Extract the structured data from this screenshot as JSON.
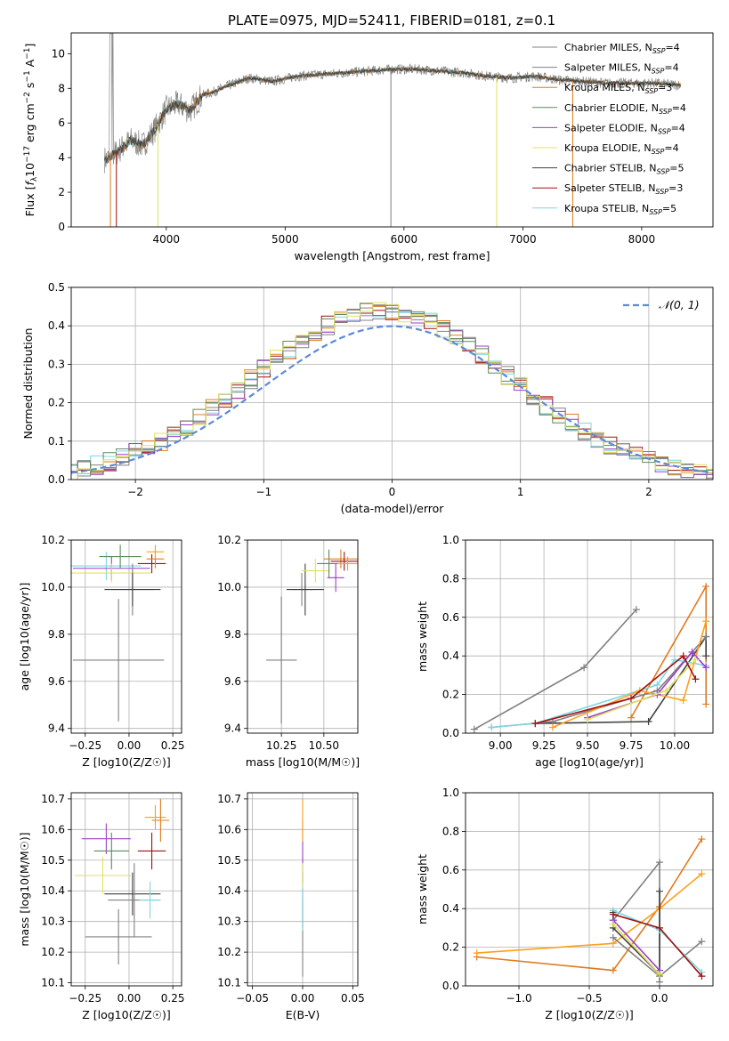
{
  "figure": {
    "title": "PLATE=0975, MJD=52411, FIBERID=0181, z=0.1"
  },
  "models": [
    {
      "name": "Chabrier MILES",
      "nssp": "4",
      "color": "#808080"
    },
    {
      "name": "Salpeter MILES",
      "nssp": "4",
      "color": "#808080"
    },
    {
      "name": "Kroupa MILES",
      "nssp": "3",
      "color": "#e07b1f"
    },
    {
      "name": "Chabrier ELODIE",
      "nssp": "4",
      "color": "#5a8a5a"
    },
    {
      "name": "Salpeter ELODIE",
      "nssp": "4",
      "color": "#9b3fc9"
    },
    {
      "name": "Kroupa ELODIE",
      "nssp": "4",
      "color": "#e0e060"
    },
    {
      "name": "Chabrier STELIB",
      "nssp": "5",
      "color": "#404040"
    },
    {
      "name": "Salpeter STELIB",
      "nssp": "3",
      "color": "#a01010"
    },
    {
      "name": "Kroupa STELIB",
      "nssp": "5",
      "color": "#7fd6e0"
    }
  ],
  "chart_data": [
    {
      "id": "spectrum",
      "type": "line",
      "xlabel": "wavelength [Angstrom, rest frame]",
      "ylabel_html": "Flux [f_λ10^-17 erg cm^-2 s^-1 A^-1]",
      "ylabel_parts": [
        "Flux [",
        "f",
        "λ",
        "10",
        "−17",
        " erg cm",
        "−2",
        " s",
        "−1",
        " A",
        "−1",
        "]"
      ],
      "xlim": [
        3200,
        8600
      ],
      "ylim": [
        0,
        11.2
      ],
      "xticks": [
        4000,
        5000,
        6000,
        7000,
        8000
      ],
      "yticks": [
        0,
        2,
        4,
        6,
        8,
        10
      ],
      "envelope": {
        "x": [
          3500,
          3600,
          3700,
          3800,
          3900,
          4000,
          4100,
          4200,
          4300,
          4400,
          4500,
          4700,
          4900,
          5100,
          5300,
          5500,
          5700,
          5900,
          6100,
          6300,
          6500,
          6700,
          6900,
          7100,
          7300,
          7500,
          7700,
          7900,
          8100,
          8300
        ],
        "y": [
          3.9,
          4.4,
          5.0,
          4.7,
          5.6,
          6.8,
          7.1,
          6.7,
          7.6,
          7.8,
          8.1,
          8.6,
          8.4,
          8.7,
          8.8,
          8.9,
          9.0,
          9.1,
          9.1,
          9.0,
          8.9,
          8.7,
          8.6,
          8.7,
          8.5,
          8.4,
          8.3,
          8.3,
          8.3,
          8.2
        ]
      }
    },
    {
      "id": "residuals",
      "type": "histogram",
      "xlabel": "(data-model)/error",
      "ylabel": "Normed distribution",
      "xlim": [
        -2.5,
        2.5
      ],
      "ylim": [
        0,
        0.5
      ],
      "xticks": [
        -2,
        -1,
        0,
        1,
        2
      ],
      "yticks": [
        0.0,
        0.1,
        0.2,
        0.3,
        0.4,
        0.5
      ],
      "legend": "𝒩(0, 1)",
      "legend_loc": "upper right"
    },
    {
      "id": "age-vs-Z",
      "type": "errorbar",
      "xlabel": "Z [log10(Z/Z☉)]",
      "ylabel": "age [log10(age/yr)]",
      "xlim": [
        -0.33,
        0.3
      ],
      "ylim": [
        9.38,
        10.2
      ],
      "xticks": [
        -0.25,
        0.0,
        0.25
      ],
      "yticks": [
        9.4,
        9.6,
        9.8,
        10.0,
        10.2
      ],
      "points": [
        {
          "x": -0.13,
          "y": 10.09,
          "xerr": 0.2,
          "yerr": 0.06,
          "c": 8
        },
        {
          "x": -0.1,
          "y": 10.08,
          "xerr": 0.22,
          "yerr": 0.05,
          "c": 4
        },
        {
          "x": -0.1,
          "y": 10.06,
          "xerr": 0.23,
          "yerr": 0.04,
          "c": 5
        },
        {
          "x": -0.05,
          "y": 10.13,
          "xerr": 0.12,
          "yerr": 0.05,
          "c": 3
        },
        {
          "x": 0.02,
          "y": 9.99,
          "xerr": 0.12,
          "yerr": 0.11,
          "c": 0
        },
        {
          "x": 0.02,
          "y": 9.99,
          "xerr": 0.16,
          "yerr": 0.07,
          "c": 6
        },
        {
          "x": 0.13,
          "y": 10.1,
          "xerr": 0.08,
          "yerr": 0.04,
          "c": 7
        },
        {
          "x": 0.15,
          "y": 10.12,
          "xerr": 0.05,
          "yerr": 0.04,
          "c": 2
        },
        {
          "x": 0.15,
          "y": 10.15,
          "xerr": 0.05,
          "yerr": 0.03,
          "c": 9
        },
        {
          "x": -0.06,
          "y": 9.69,
          "xerr": 0.26,
          "yerr": 0.26,
          "c": 1
        }
      ]
    },
    {
      "id": "age-vs-mass",
      "type": "errorbar",
      "xlabel": "mass [log10(M/M☉)]",
      "ylabel": "",
      "xlim": [
        10.05,
        10.7
      ],
      "ylim": [
        9.38,
        10.2
      ],
      "xticks": [
        10.25,
        10.5
      ],
      "xtick_labels": [
        "10.25",
        "10.50"
      ],
      "yticks": [
        9.4,
        9.6,
        9.8,
        10.0,
        10.2
      ],
      "points": [
        {
          "x": 10.37,
          "y": 9.99,
          "xerr": 0.07,
          "yerr": 0.07,
          "c": 0
        },
        {
          "x": 10.39,
          "y": 9.99,
          "xerr": 0.11,
          "yerr": 0.11,
          "c": 6
        },
        {
          "x": 10.45,
          "y": 10.07,
          "xerr": 0.08,
          "yerr": 0.05,
          "c": 5
        },
        {
          "x": 10.53,
          "y": 10.1,
          "xerr": 0.07,
          "yerr": 0.06,
          "c": 3
        },
        {
          "x": 10.57,
          "y": 10.04,
          "xerr": 0.05,
          "yerr": 0.06,
          "c": 4
        },
        {
          "x": 10.6,
          "y": 10.12,
          "xerr": 0.1,
          "yerr": 0.04,
          "c": 2
        },
        {
          "x": 10.62,
          "y": 10.11,
          "xerr": 0.08,
          "yerr": 0.04,
          "c": 7
        },
        {
          "x": 10.64,
          "y": 10.1,
          "xerr": 0.06,
          "yerr": 0.03,
          "c": 9
        },
        {
          "x": 10.25,
          "y": 9.69,
          "xerr": 0.09,
          "yerr": 0.27,
          "c": 1
        }
      ]
    },
    {
      "id": "weight-vs-age",
      "type": "line",
      "xlabel": "age [log10(age/yr)]",
      "ylabel": "mass weight",
      "xlim": [
        8.8,
        10.22
      ],
      "ylim": [
        0,
        1.0
      ],
      "xticks": [
        9.0,
        9.25,
        9.5,
        9.75,
        10.0
      ],
      "xtick_labels": [
        "9.00",
        "9.25",
        "9.50",
        "9.75",
        "10.00"
      ],
      "yticks": [
        0.0,
        0.2,
        0.4,
        0.6,
        0.8,
        1.0
      ],
      "series": [
        {
          "c": 1,
          "x": [
            8.85,
            9.48,
            9.78
          ],
          "y": [
            0.02,
            0.34,
            0.64
          ]
        },
        {
          "c": 2,
          "x": [
            9.75,
            10.18,
            10.18
          ],
          "y": [
            0.08,
            0.76,
            0.15
          ]
        },
        {
          "c": 6,
          "x": [
            9.2,
            9.85,
            10.18,
            10.18
          ],
          "y": [
            0.05,
            0.06,
            0.5,
            0.4
          ]
        },
        {
          "c": 0,
          "x": [
            8.95,
            9.3,
            9.9,
            10.18
          ],
          "y": [
            0.03,
            0.06,
            0.22,
            0.5
          ]
        },
        {
          "c": 8,
          "x": [
            8.95,
            9.2,
            9.9,
            10.0,
            10.18
          ],
          "y": [
            0.03,
            0.05,
            0.25,
            0.38,
            0.35
          ]
        },
        {
          "c": 9,
          "x": [
            9.3,
            9.8,
            10.05,
            10.18
          ],
          "y": [
            0.03,
            0.22,
            0.17,
            0.58
          ]
        },
        {
          "c": 4,
          "x": [
            9.5,
            9.9,
            10.1,
            10.18
          ],
          "y": [
            0.08,
            0.2,
            0.42,
            0.34
          ]
        },
        {
          "c": 5,
          "x": [
            9.5,
            9.95,
            10.12
          ],
          "y": [
            0.07,
            0.22,
            0.38
          ]
        },
        {
          "c": 7,
          "x": [
            9.2,
            9.75,
            10.05,
            10.12
          ],
          "y": [
            0.05,
            0.18,
            0.4,
            0.28
          ]
        }
      ]
    },
    {
      "id": "mass-vs-Z",
      "type": "errorbar",
      "xlabel": "Z [log10(Z/Z☉)]",
      "ylabel": "mass [log10(M/M☉)]",
      "xlim": [
        -0.33,
        0.3
      ],
      "ylim": [
        10.09,
        10.72
      ],
      "xticks": [
        -0.25,
        0.0,
        0.25
      ],
      "yticks": [
        10.1,
        10.2,
        10.3,
        10.4,
        10.5,
        10.6,
        10.7
      ],
      "points": [
        {
          "x": -0.13,
          "y": 10.57,
          "xerr": 0.14,
          "yerr": 0.05,
          "c": 4
        },
        {
          "x": -0.1,
          "y": 10.53,
          "xerr": 0.1,
          "yerr": 0.06,
          "c": 3
        },
        {
          "x": -0.15,
          "y": 10.45,
          "xerr": 0.16,
          "yerr": 0.06,
          "c": 5
        },
        {
          "x": 0.02,
          "y": 10.39,
          "xerr": 0.16,
          "yerr": 0.07,
          "c": 6
        },
        {
          "x": 0.03,
          "y": 10.37,
          "xerr": 0.15,
          "yerr": 0.12,
          "c": 0
        },
        {
          "x": 0.13,
          "y": 10.53,
          "xerr": 0.08,
          "yerr": 0.06,
          "c": 7
        },
        {
          "x": 0.15,
          "y": 10.64,
          "xerr": 0.06,
          "yerr": 0.04,
          "c": 9
        },
        {
          "x": 0.18,
          "y": 10.63,
          "xerr": 0.05,
          "yerr": 0.07,
          "c": 2
        },
        {
          "x": 0.12,
          "y": 10.37,
          "xerr": 0.06,
          "yerr": 0.06,
          "c": 8
        },
        {
          "x": -0.06,
          "y": 10.25,
          "xerr": 0.19,
          "yerr": 0.09,
          "c": 1
        }
      ]
    },
    {
      "id": "mass-vs-EBV",
      "type": "errorbar",
      "xlabel": "E(B-V)",
      "ylabel": "",
      "xlim": [
        -0.055,
        0.055
      ],
      "ylim": [
        10.09,
        10.72
      ],
      "xticks": [
        -0.05,
        0.0,
        0.05
      ],
      "xtick_labels": [
        "−0.05",
        "0.00",
        "0.05"
      ],
      "yticks": [
        10.1,
        10.2,
        10.3,
        10.4,
        10.5,
        10.6,
        10.7
      ],
      "points": [
        {
          "x": 0.0,
          "y": 10.25,
          "xerr": 0.0,
          "yerr": 0.13,
          "c": 1
        },
        {
          "x": 0.0,
          "y": 10.37,
          "xerr": 0.0,
          "yerr": 0.09,
          "c": 6
        },
        {
          "x": 0.0,
          "y": 10.39,
          "xerr": 0.0,
          "yerr": 0.12,
          "c": 8
        },
        {
          "x": 0.0,
          "y": 10.53,
          "xerr": 0.0,
          "yerr": 0.1,
          "c": 4
        },
        {
          "x": 0.0,
          "y": 10.63,
          "xerr": 0.0,
          "yerr": 0.07,
          "c": 9
        },
        {
          "x": 0.0,
          "y": 10.45,
          "xerr": 0.0,
          "yerr": 0.04,
          "c": 5
        }
      ]
    },
    {
      "id": "weight-vs-Z",
      "type": "line",
      "xlabel": "Z [log10(Z/Z☉)]",
      "ylabel": "mass weight",
      "xlim": [
        -1.38,
        0.38
      ],
      "ylim": [
        0,
        1.0
      ],
      "xticks": [
        -1.0,
        -0.5,
        0.0
      ],
      "xtick_labels": [
        "−1.0",
        "−0.5",
        "0.0"
      ],
      "yticks": [
        0.0,
        0.2,
        0.4,
        0.6,
        0.8,
        1.0
      ],
      "series": [
        {
          "c": 2,
          "x": [
            -1.3,
            -0.33,
            0.0,
            0.3
          ],
          "y": [
            0.15,
            0.08,
            0.41,
            0.76
          ]
        },
        {
          "c": 9,
          "x": [
            -1.3,
            -0.33,
            0.0,
            0.3
          ],
          "y": [
            0.17,
            0.22,
            0.4,
            0.58
          ]
        },
        {
          "c": 1,
          "x": [
            -0.33,
            0.0,
            0.0
          ],
          "y": [
            0.34,
            0.64,
            0.02
          ]
        },
        {
          "c": 6,
          "x": [
            -0.33,
            -0.33,
            0.0,
            0.0
          ],
          "y": [
            0.38,
            0.3,
            0.06,
            0.49
          ]
        },
        {
          "c": 0,
          "x": [
            -0.33,
            0.0,
            0.3
          ],
          "y": [
            0.25,
            0.05,
            0.23
          ]
        },
        {
          "c": 8,
          "x": [
            -0.33,
            0.0,
            0.3
          ],
          "y": [
            0.39,
            0.29,
            0.07
          ]
        },
        {
          "c": 4,
          "x": [
            -0.33,
            0.0
          ],
          "y": [
            0.34,
            0.08
          ]
        },
        {
          "c": 5,
          "x": [
            -0.33,
            0.0
          ],
          "y": [
            0.32,
            0.06
          ]
        },
        {
          "c": 7,
          "x": [
            -0.33,
            0.0,
            0.3
          ],
          "y": [
            0.37,
            0.3,
            0.05
          ]
        }
      ]
    }
  ]
}
